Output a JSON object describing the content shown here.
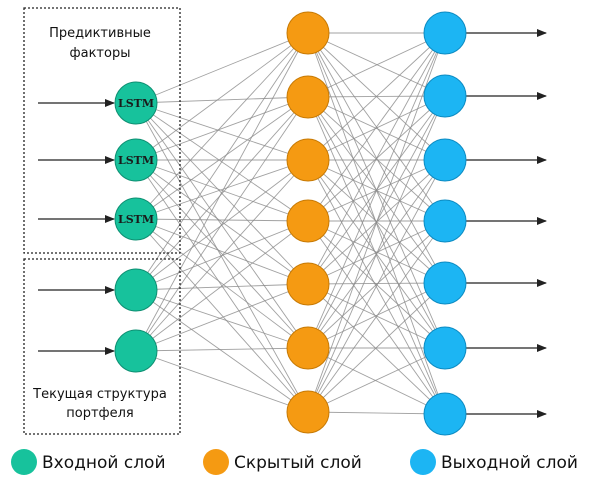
{
  "colors": {
    "input": "#17c29c",
    "hidden": "#f59a12",
    "output": "#1cb5f3",
    "edge": "#8a8a8a",
    "arrow": "#222222",
    "box": "#222222"
  },
  "boxes": {
    "predictive_factors": {
      "line1": "Предиктивные",
      "line2": "факторы"
    },
    "current_portfolio": {
      "line1": "Текущая структура",
      "line2": "портфеля"
    }
  },
  "lstm_label": "LSTM",
  "layers": {
    "input": {
      "count": 5,
      "lstm_count": 3
    },
    "hidden": {
      "count": 7
    },
    "output": {
      "count": 7
    }
  },
  "legend": [
    {
      "key": "input",
      "label": "Входной слой"
    },
    {
      "key": "hidden",
      "label": "Скрытый слой"
    },
    {
      "key": "output",
      "label": "Выходной слой"
    }
  ]
}
